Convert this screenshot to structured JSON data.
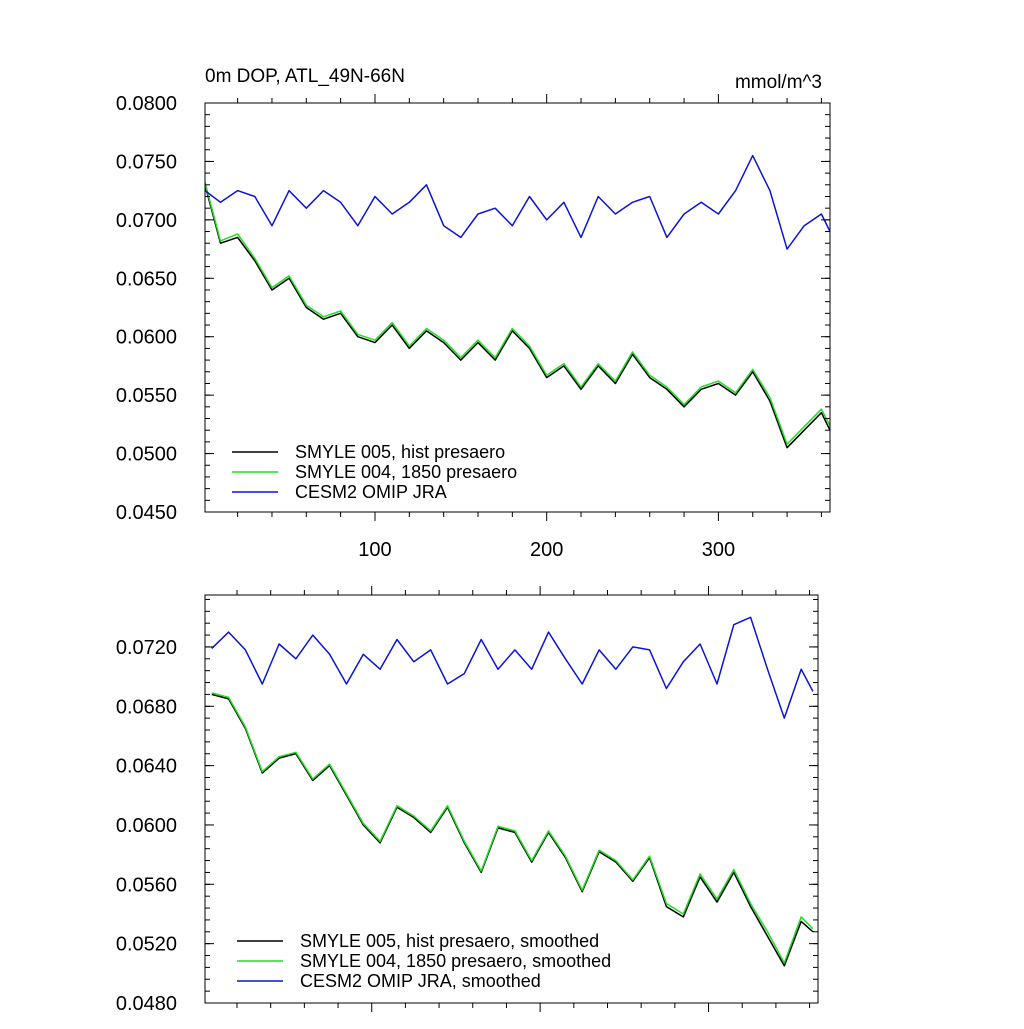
{
  "figure": {
    "background": "#ffffff"
  },
  "chart_data": [
    {
      "type": "line",
      "title": "0m DOP, ATL_49N-66N",
      "units": "mmol/m^3",
      "xlabel": "",
      "ylabel": "",
      "xlim": [
        1,
        365
      ],
      "ylim": [
        0.045,
        0.08
      ],
      "xticks": [
        100,
        200,
        300
      ],
      "yticks": [
        0.045,
        0.05,
        0.055,
        0.06,
        0.065,
        0.07,
        0.075,
        0.08
      ],
      "ytick_labels": [
        "0.0450",
        "0.0500",
        "0.0550",
        "0.0600",
        "0.0650",
        "0.0700",
        "0.0750",
        "0.0800"
      ],
      "xtick_labels": [
        "100",
        "200",
        "300"
      ],
      "grid": false,
      "legend_position": "bottom-left",
      "series": [
        {
          "name": "SMYLE 005, hist presaero",
          "color": "#000000",
          "x": [
            1,
            10,
            20,
            30,
            40,
            50,
            60,
            70,
            80,
            90,
            100,
            110,
            120,
            130,
            140,
            150,
            160,
            170,
            180,
            190,
            200,
            210,
            220,
            230,
            240,
            250,
            260,
            270,
            280,
            290,
            300,
            310,
            320,
            330,
            340,
            350,
            360,
            365
          ],
          "y": [
            0.073,
            0.068,
            0.0685,
            0.0665,
            0.064,
            0.065,
            0.0625,
            0.0615,
            0.062,
            0.06,
            0.0595,
            0.061,
            0.059,
            0.0605,
            0.0595,
            0.058,
            0.0595,
            0.058,
            0.0605,
            0.059,
            0.0565,
            0.0575,
            0.0555,
            0.0575,
            0.056,
            0.0585,
            0.0565,
            0.0555,
            0.054,
            0.0555,
            0.056,
            0.055,
            0.057,
            0.0545,
            0.0505,
            0.052,
            0.0535,
            0.052
          ]
        },
        {
          "name": "SMYLE 004, 1850 presaero",
          "color": "#22dd22",
          "x": [
            1,
            10,
            20,
            30,
            40,
            50,
            60,
            70,
            80,
            90,
            100,
            110,
            120,
            130,
            140,
            150,
            160,
            170,
            180,
            190,
            200,
            210,
            220,
            230,
            240,
            250,
            260,
            270,
            280,
            290,
            300,
            310,
            320,
            330,
            340,
            350,
            360,
            365
          ],
          "y": [
            0.0732,
            0.0682,
            0.0688,
            0.0667,
            0.0642,
            0.0652,
            0.0627,
            0.0617,
            0.0622,
            0.0602,
            0.0597,
            0.0612,
            0.0592,
            0.0607,
            0.0597,
            0.0582,
            0.0597,
            0.0582,
            0.0607,
            0.0592,
            0.0567,
            0.0577,
            0.0557,
            0.0577,
            0.0562,
            0.0587,
            0.0567,
            0.0557,
            0.0542,
            0.0557,
            0.0562,
            0.0552,
            0.0572,
            0.0548,
            0.0508,
            0.0523,
            0.0538,
            0.0524
          ]
        },
        {
          "name": "CESM2 OMIP JRA",
          "color": "#0a14d8",
          "x": [
            1,
            10,
            20,
            30,
            40,
            50,
            60,
            70,
            80,
            90,
            100,
            110,
            120,
            130,
            140,
            150,
            160,
            170,
            180,
            190,
            200,
            210,
            220,
            230,
            240,
            250,
            260,
            270,
            280,
            290,
            300,
            310,
            320,
            330,
            340,
            350,
            360,
            365
          ],
          "y": [
            0.0725,
            0.0715,
            0.0725,
            0.072,
            0.0695,
            0.0725,
            0.071,
            0.0725,
            0.0715,
            0.0695,
            0.072,
            0.0705,
            0.0715,
            0.073,
            0.0695,
            0.0685,
            0.0705,
            0.071,
            0.0695,
            0.072,
            0.07,
            0.0715,
            0.0685,
            0.072,
            0.0705,
            0.0715,
            0.072,
            0.0685,
            0.0705,
            0.0715,
            0.0705,
            0.0725,
            0.0755,
            0.0725,
            0.0675,
            0.0695,
            0.0705,
            0.069
          ]
        }
      ]
    },
    {
      "type": "line",
      "title": "",
      "xlabel": "",
      "ylabel": "",
      "xlim": [
        1,
        365
      ],
      "ylim": [
        0.048,
        0.0755
      ],
      "xticks": [
        100,
        200,
        300
      ],
      "yticks": [
        0.048,
        0.052,
        0.056,
        0.06,
        0.064,
        0.068,
        0.072
      ],
      "ytick_labels": [
        "0.0480",
        "0.0520",
        "0.0560",
        "0.0600",
        "0.0640",
        "0.0680",
        "0.0720"
      ],
      "grid": false,
      "legend_position": "bottom-left",
      "series": [
        {
          "name": "SMYLE 005, hist presaero, smoothed",
          "color": "#000000",
          "x": [
            5,
            15,
            25,
            35,
            45,
            55,
            65,
            75,
            85,
            95,
            105,
            115,
            125,
            135,
            145,
            155,
            165,
            175,
            185,
            195,
            205,
            215,
            225,
            235,
            245,
            255,
            265,
            275,
            285,
            295,
            305,
            315,
            325,
            335,
            345,
            355,
            362
          ],
          "y": [
            0.0688,
            0.0685,
            0.0665,
            0.0635,
            0.0645,
            0.0648,
            0.063,
            0.064,
            0.062,
            0.06,
            0.0588,
            0.0612,
            0.0605,
            0.0595,
            0.0612,
            0.0588,
            0.0568,
            0.0598,
            0.0595,
            0.0575,
            0.0595,
            0.0578,
            0.0555,
            0.0582,
            0.0575,
            0.0562,
            0.0578,
            0.0545,
            0.0538,
            0.0565,
            0.0548,
            0.0568,
            0.0545,
            0.0525,
            0.0505,
            0.0535,
            0.0528
          ]
        },
        {
          "name": "SMYLE 004, 1850 presaero, smoothed",
          "color": "#22dd22",
          "x": [
            5,
            15,
            25,
            35,
            45,
            55,
            65,
            75,
            85,
            95,
            105,
            115,
            125,
            135,
            145,
            155,
            165,
            175,
            185,
            195,
            205,
            215,
            225,
            235,
            245,
            255,
            265,
            275,
            285,
            295,
            305,
            315,
            325,
            335,
            345,
            355,
            362
          ],
          "y": [
            0.0689,
            0.0686,
            0.0666,
            0.0636,
            0.0646,
            0.0649,
            0.0631,
            0.0641,
            0.0621,
            0.0601,
            0.0589,
            0.0613,
            0.0606,
            0.0596,
            0.0613,
            0.0589,
            0.0569,
            0.0599,
            0.0596,
            0.0576,
            0.0596,
            0.0579,
            0.0556,
            0.0583,
            0.0576,
            0.0563,
            0.0579,
            0.0547,
            0.054,
            0.0567,
            0.055,
            0.057,
            0.0547,
            0.0528,
            0.0507,
            0.0538,
            0.053
          ]
        },
        {
          "name": "CESM2 OMIP JRA, smoothed",
          "color": "#0a14d8",
          "x": [
            5,
            15,
            25,
            35,
            45,
            55,
            65,
            75,
            85,
            95,
            105,
            115,
            125,
            135,
            145,
            155,
            165,
            175,
            185,
            195,
            205,
            215,
            225,
            235,
            245,
            255,
            265,
            275,
            285,
            295,
            305,
            315,
            325,
            335,
            345,
            355,
            362
          ],
          "y": [
            0.0719,
            0.073,
            0.0718,
            0.0695,
            0.0722,
            0.0712,
            0.0728,
            0.0715,
            0.0695,
            0.0715,
            0.0705,
            0.0725,
            0.071,
            0.0718,
            0.0695,
            0.0702,
            0.0725,
            0.0705,
            0.0718,
            0.0705,
            0.073,
            0.0712,
            0.0695,
            0.0718,
            0.0705,
            0.072,
            0.0718,
            0.0692,
            0.071,
            0.0722,
            0.0695,
            0.0735,
            0.074,
            0.0705,
            0.0672,
            0.0705,
            0.069
          ]
        }
      ]
    }
  ]
}
